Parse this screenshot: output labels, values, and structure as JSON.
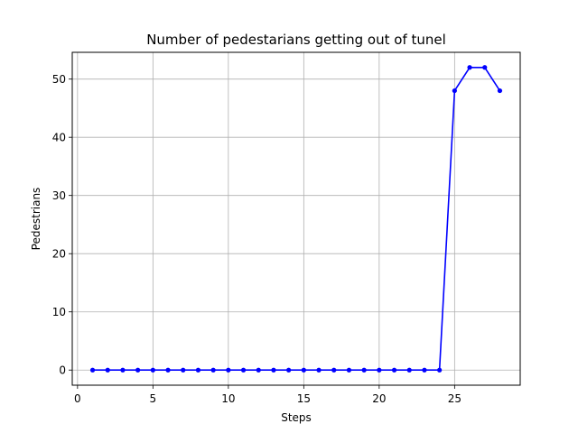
{
  "chart_data": {
    "type": "line",
    "title": "Number of pedestarians getting out of tunel",
    "xlabel": "Steps",
    "ylabel": "Pedestrians",
    "xlim": [
      -0.35,
      29.35
    ],
    "ylim": [
      -2.6,
      54.6
    ],
    "xticks": [
      0,
      5,
      10,
      15,
      20,
      25
    ],
    "yticks": [
      0,
      10,
      20,
      30,
      40,
      50
    ],
    "grid": true,
    "series": [
      {
        "color": "#0000ff",
        "marker": "circle",
        "x": [
          1,
          2,
          3,
          4,
          5,
          6,
          7,
          8,
          9,
          10,
          11,
          12,
          13,
          14,
          15,
          16,
          17,
          18,
          19,
          20,
          21,
          22,
          23,
          24,
          25,
          26,
          27,
          28
        ],
        "y": [
          0,
          0,
          0,
          0,
          0,
          0,
          0,
          0,
          0,
          0,
          0,
          0,
          0,
          0,
          0,
          0,
          0,
          0,
          0,
          0,
          0,
          0,
          0,
          0,
          48,
          52,
          52,
          48
        ]
      }
    ]
  }
}
